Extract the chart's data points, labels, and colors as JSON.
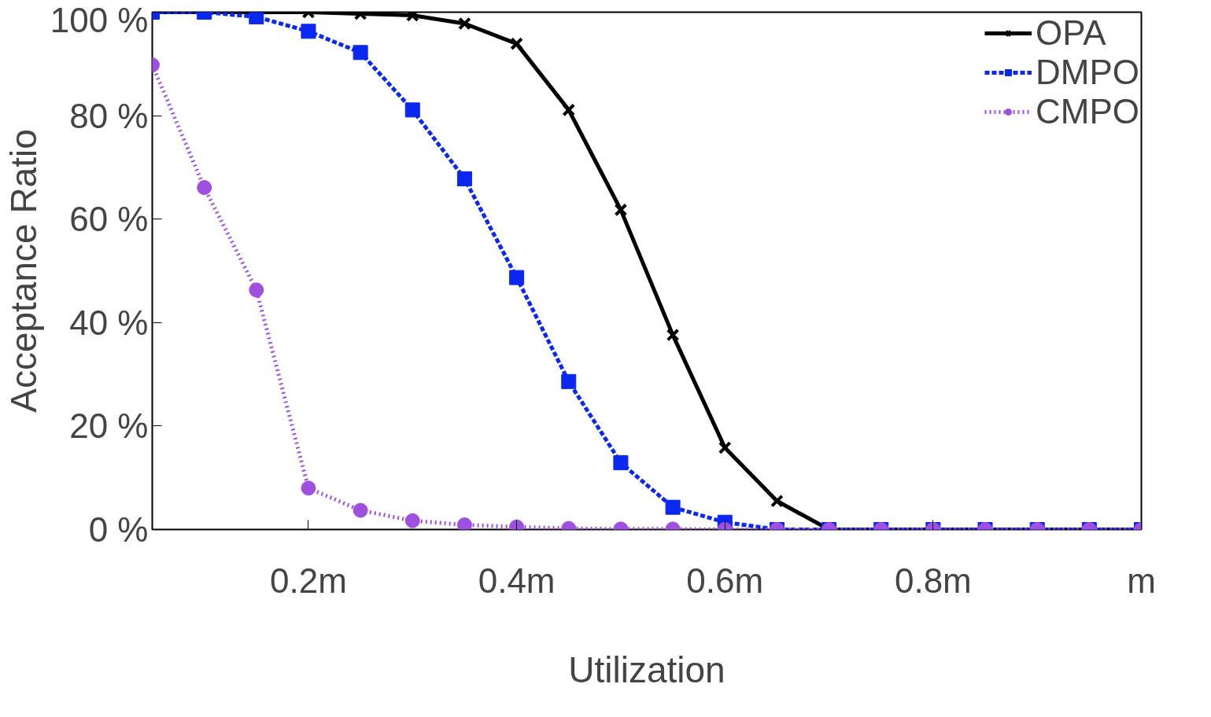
{
  "chart_data": {
    "type": "line",
    "xlabel": "Utilization",
    "ylabel": "Acceptance Ratio",
    "x": [
      0.05,
      0.1,
      0.15,
      0.2,
      0.25,
      0.3,
      0.35,
      0.4,
      0.45,
      0.5,
      0.55,
      0.6,
      0.65,
      0.7,
      0.75,
      0.8,
      0.85,
      0.9,
      0.95,
      1.0
    ],
    "xlim": [
      0.05,
      1.0
    ],
    "xticks": [
      {
        "value": 0.2,
        "label": "0.2m"
      },
      {
        "value": 0.4,
        "label": "0.4m"
      },
      {
        "value": 0.6,
        "label": "0.6m"
      },
      {
        "value": 0.8,
        "label": "0.8m"
      },
      {
        "value": 1.0,
        "label": "m"
      }
    ],
    "ylim": [
      0,
      100
    ],
    "yticks": [
      {
        "value": 0,
        "label": "0 %"
      },
      {
        "value": 20,
        "label": "20 %"
      },
      {
        "value": 40,
        "label": "40 %"
      },
      {
        "value": 60,
        "label": "60 %"
      },
      {
        "value": 80,
        "label": "80 %"
      },
      {
        "value": 100,
        "label": "100 %"
      }
    ],
    "grid": false,
    "legend": "top right",
    "series": [
      {
        "name": "OPA",
        "color": "#000000",
        "marker": "cross",
        "line_style": "solid",
        "values": [
          100,
          100,
          100,
          100,
          99.7,
          99.4,
          97.8,
          93.9,
          81.1,
          61.8,
          37.6,
          15.8,
          5.5,
          0,
          0,
          0,
          0,
          0,
          0,
          0
        ]
      },
      {
        "name": "DMPO",
        "color": "#0a28f0",
        "marker": "square",
        "line_style": "dashed",
        "values": [
          100,
          100,
          99.1,
          96.3,
          92.2,
          81.1,
          67.8,
          48.7,
          28.6,
          12.9,
          4.3,
          1.4,
          0,
          0,
          0,
          0,
          0,
          0,
          0,
          0
        ]
      },
      {
        "name": "CMPO",
        "color": "#a050e0",
        "marker": "circle",
        "line_style": "dotted",
        "values": [
          89.8,
          66.1,
          46.3,
          8,
          3.7,
          1.7,
          0.9,
          0.5,
          0.2,
          0.1,
          0.1,
          0,
          0,
          0,
          0,
          0,
          0,
          0,
          0,
          0
        ]
      }
    ]
  }
}
